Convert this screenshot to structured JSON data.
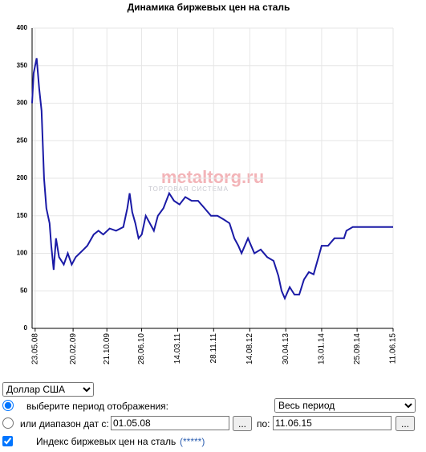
{
  "chart_data": {
    "type": "line",
    "title": "Динамика биржевых цен на сталь",
    "watermark": "metaltorg.ru",
    "watermark_subtitle": "ТОРГОВАЯ СИСТЕМА",
    "x": [
      "2008-05-01",
      "2008-05-12",
      "2008-06-03",
      "2008-06-21",
      "2008-07-08",
      "2008-07-26",
      "2008-08-12",
      "2008-09-04",
      "2008-09-16",
      "2008-10-03",
      "2008-10-20",
      "2008-11-11",
      "2008-12-15",
      "2009-01-13",
      "2009-02-10",
      "2009-03-11",
      "2009-04-08",
      "2009-05-06",
      "2009-06-02",
      "2009-07-18",
      "2009-08-21",
      "2009-09-25",
      "2009-11-10",
      "2009-12-26",
      "2010-02-16",
      "2010-03-17",
      "2010-04-03",
      "2010-04-21",
      "2010-05-14",
      "2010-06-06",
      "2010-06-29",
      "2010-07-28",
      "2010-08-26",
      "2010-09-24",
      "2010-10-23",
      "2010-12-02",
      "2011-01-12",
      "2011-02-16",
      "2011-03-28",
      "2011-05-08",
      "2011-06-23",
      "2011-08-08",
      "2011-09-24",
      "2011-11-09",
      "2011-12-25",
      "2012-02-09",
      "2012-03-21",
      "2012-04-25",
      "2012-05-24",
      "2012-06-16",
      "2012-08-01",
      "2012-09-16",
      "2012-11-01",
      "2012-12-17",
      "2013-02-01",
      "2013-03-08",
      "2013-03-31",
      "2013-04-23",
      "2013-05-28",
      "2013-07-01",
      "2013-08-05",
      "2013-09-08",
      "2013-10-13",
      "2013-11-16",
      "2013-12-21",
      "2014-01-13",
      "2014-02-28",
      "2014-04-15",
      "2014-06-23",
      "2014-07-10",
      "2014-08-25",
      "2014-12-14",
      "2015-06-11"
    ],
    "series": [
      {
        "name": "Индекс биржевых цен на сталь",
        "color": "#1a1aa6",
        "values": [
          300,
          340,
          360,
          320,
          290,
          200,
          160,
          140,
          110,
          78,
          120,
          95,
          85,
          100,
          85,
          95,
          100,
          105,
          110,
          125,
          130,
          125,
          133,
          130,
          135,
          160,
          180,
          155,
          140,
          120,
          125,
          150,
          140,
          130,
          150,
          160,
          180,
          170,
          165,
          175,
          170,
          170,
          160,
          150,
          150,
          145,
          140,
          120,
          110,
          100,
          120,
          100,
          105,
          95,
          90,
          70,
          50,
          40,
          55,
          45,
          45,
          65,
          75,
          72,
          95,
          110,
          110,
          120,
          120,
          130,
          135,
          135,
          135
        ]
      }
    ],
    "xlim": [
      "2008-05-01",
      "2015-06-11"
    ],
    "xticks": [
      {
        "value": "2008-05-23",
        "label": "23.05.08"
      },
      {
        "value": "2009-02-20",
        "label": "20.02.09"
      },
      {
        "value": "2009-10-21",
        "label": "21.10.09"
      },
      {
        "value": "2010-06-28",
        "label": "28.06.10"
      },
      {
        "value": "2011-03-14",
        "label": "14.03.11"
      },
      {
        "value": "2011-11-28",
        "label": "28.11.11"
      },
      {
        "value": "2012-08-14",
        "label": "14.08.12"
      },
      {
        "value": "2013-04-30",
        "label": "30.04.13"
      },
      {
        "value": "2014-01-13",
        "label": "13.01.14"
      },
      {
        "value": "2014-09-25",
        "label": "25.09.14"
      },
      {
        "value": "2015-06-11",
        "label": "11.06.15"
      }
    ],
    "ylim": [
      0,
      400
    ],
    "yticks": [
      0,
      50,
      100,
      150,
      200,
      250,
      300,
      350,
      400
    ],
    "grid": true
  },
  "controls": {
    "currency": "Доллар США",
    "period_label": "выберите период отображения:",
    "period_value": "Весь период",
    "range_label": "или диапазон дат с:",
    "date_from": "01.05.08",
    "browse": "...",
    "to_label": "по:",
    "date_to": "11.06.15",
    "index_label": "Индекс биржевых цен на сталь",
    "index_link": "(*****)"
  }
}
